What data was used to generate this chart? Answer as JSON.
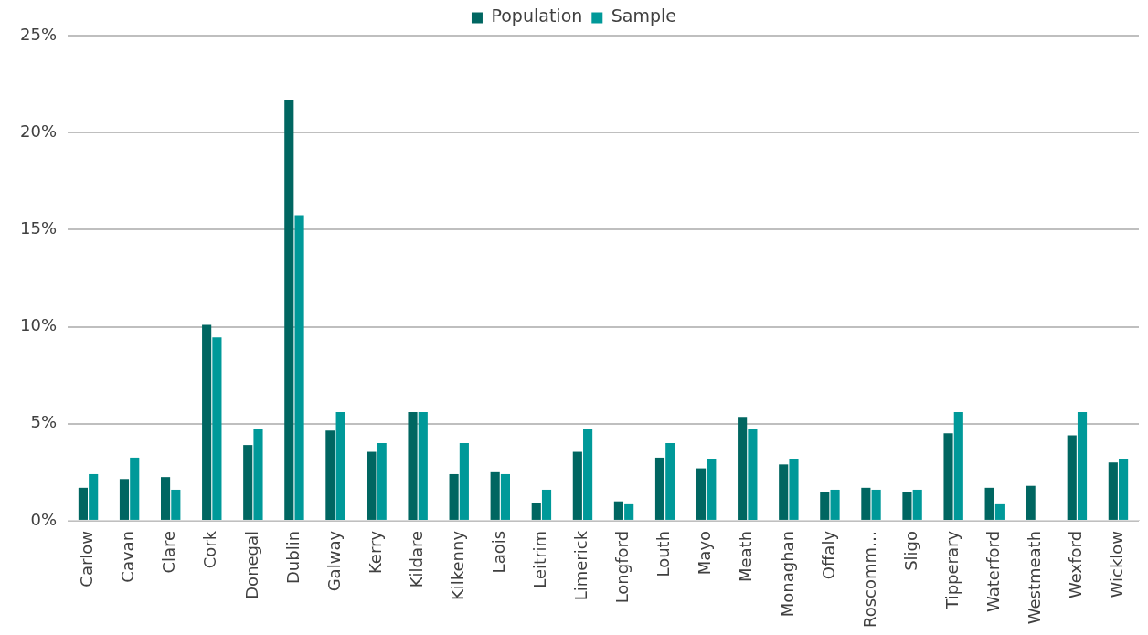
{
  "chart_data": {
    "type": "bar",
    "categories": [
      "Carlow",
      "Cavan",
      "Clare",
      "Cork",
      "Donegal",
      "Dublin",
      "Galway",
      "Kerry",
      "Kildare",
      "Kilkenny",
      "Laois",
      "Leitrim",
      "Limerick",
      "Longford",
      "Louth",
      "Mayo",
      "Meath",
      "Monaghan",
      "Offaly",
      "Roscomm…",
      "Sligo",
      "Tipperary",
      "Waterford",
      "Westmeath",
      "Wexford",
      "Wicklow"
    ],
    "series": [
      {
        "name": "Population",
        "color": "#006661",
        "values": [
          1.7,
          2.15,
          2.25,
          10.1,
          3.9,
          21.7,
          4.65,
          3.55,
          5.6,
          2.4,
          2.5,
          0.9,
          3.55,
          1.0,
          3.25,
          2.7,
          5.35,
          2.9,
          1.5,
          1.7,
          1.5,
          4.5,
          1.7,
          1.8,
          4.4,
          3.0
        ]
      },
      {
        "name": "Sample",
        "color": "#009999",
        "values": [
          2.4,
          3.25,
          1.6,
          9.45,
          4.7,
          15.75,
          5.6,
          4.0,
          5.6,
          4.0,
          2.4,
          1.6,
          4.7,
          0.85,
          4.0,
          3.2,
          4.7,
          3.2,
          1.6,
          1.6,
          1.6,
          5.6,
          0.85,
          0,
          5.6,
          3.2
        ]
      }
    ],
    "ylim": [
      0,
      25
    ],
    "yticks": [
      {
        "value": 0,
        "label": "0%"
      },
      {
        "value": 5,
        "label": "5%"
      },
      {
        "value": 10,
        "label": "10%"
      },
      {
        "value": 15,
        "label": "15%"
      },
      {
        "value": 20,
        "label": "20%"
      },
      {
        "value": 25,
        "label": "25%"
      }
    ],
    "grid": "y",
    "legend": "top"
  }
}
